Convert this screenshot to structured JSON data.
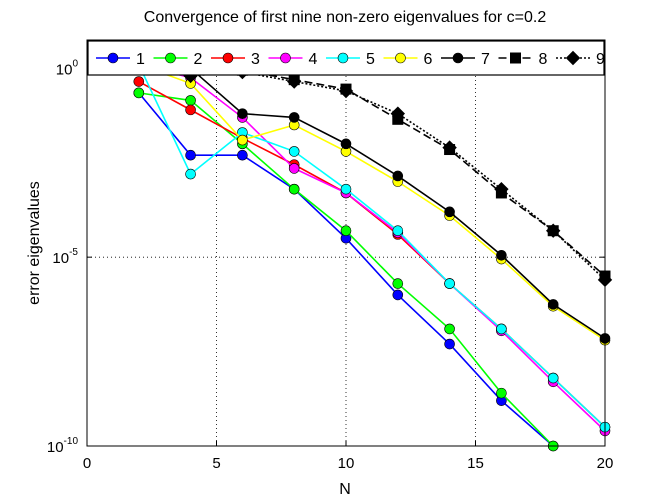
{
  "chart_data": {
    "type": "line",
    "title": "Convergence of first nine non-zero eigenvalues for c=0.2",
    "xlabel": "N",
    "ylabel": "error eigenvalues",
    "xlim": [
      0,
      20
    ],
    "ylim_log10": [
      -10,
      0.75
    ],
    "yscale": "log",
    "grid": "dotted",
    "x_ticks": [
      0,
      5,
      10,
      15,
      20
    ],
    "x_tick_labels": [
      "0",
      "5",
      "10",
      "15",
      "20"
    ],
    "y_ticks": [
      {
        "exp": 0,
        "base": "10",
        "sup": "0"
      },
      {
        "exp": -5,
        "base": "10",
        "sup": "-5"
      },
      {
        "exp": -10,
        "base": "10",
        "sup": "-10"
      }
    ],
    "legend_position": "top",
    "series": [
      {
        "name": "1",
        "color": "#0000ff",
        "line": "solid",
        "marker": "circle",
        "x": [
          2,
          4,
          6,
          8,
          10,
          12,
          14,
          16,
          18
        ],
        "log10_y": [
          -0.65,
          -2.3,
          -2.3,
          -3.2,
          -4.5,
          -6.0,
          -7.3,
          -8.8,
          -10.0
        ]
      },
      {
        "name": "2",
        "color": "#00ff00",
        "line": "solid",
        "marker": "circle",
        "x": [
          2,
          4,
          6,
          8,
          10,
          12,
          14,
          16,
          18
        ],
        "log10_y": [
          -0.65,
          -0.85,
          -2.0,
          -3.2,
          -4.3,
          -5.7,
          -6.9,
          -8.6,
          -10.0
        ]
      },
      {
        "name": "3",
        "color": "#ff0000",
        "line": "solid",
        "marker": "circle",
        "x": [
          2,
          4,
          6,
          8,
          10,
          12,
          14,
          16,
          18,
          20
        ],
        "log10_y": [
          -0.35,
          -1.1,
          -1.85,
          -2.55,
          -3.3,
          -4.4,
          -5.7,
          -6.9,
          -8.2,
          -9.5
        ]
      },
      {
        "name": "4",
        "color": "#ff00ff",
        "line": "solid",
        "marker": "circle",
        "x": [
          2,
          4,
          6,
          8,
          10,
          12,
          14,
          16,
          18,
          20
        ],
        "log10_y": [
          0.1,
          -0.25,
          -1.3,
          -2.65,
          -3.3,
          -4.35,
          -5.7,
          -6.95,
          -8.3,
          -9.6
        ]
      },
      {
        "name": "5",
        "color": "#00ffff",
        "line": "solid",
        "marker": "circle",
        "x": [
          2,
          4,
          6,
          8,
          10,
          12,
          14,
          16,
          18,
          20
        ],
        "log10_y": [
          0.1,
          -2.8,
          -1.7,
          -2.2,
          -3.2,
          -4.3,
          -5.7,
          -6.9,
          -8.2,
          -9.5
        ]
      },
      {
        "name": "6",
        "color": "#ffff00",
        "line": "solid",
        "marker": "circle",
        "x": [
          2,
          4,
          6,
          8,
          10,
          12,
          14,
          16,
          18,
          20
        ],
        "log10_y": [
          0.1,
          -0.4,
          -1.9,
          -1.5,
          -2.2,
          -3.0,
          -3.9,
          -5.05,
          -6.3,
          -7.2
        ]
      },
      {
        "name": "7",
        "color": "#000000",
        "line": "solid",
        "marker": "circle",
        "x": [
          2,
          4,
          6,
          8,
          10,
          12,
          14,
          16,
          18,
          20
        ],
        "log10_y": [
          0.2,
          0.0,
          -1.2,
          -1.3,
          -2.0,
          -2.85,
          -3.8,
          -4.95,
          -6.25,
          -7.15
        ]
      },
      {
        "name": "8",
        "color": "#000000",
        "line": "dashed",
        "marker": "square",
        "x": [
          2,
          4,
          6,
          8,
          10,
          12,
          14,
          16,
          18,
          20
        ],
        "log10_y": [
          0.25,
          -0.05,
          -0.05,
          -0.3,
          -0.55,
          -1.35,
          -2.15,
          -3.3,
          -4.3,
          -5.5
        ]
      },
      {
        "name": "9",
        "color": "#000000",
        "line": "dotted",
        "marker": "diamond",
        "x": [
          4,
          6,
          8,
          10,
          12,
          14,
          16,
          18,
          20
        ],
        "log10_y": [
          -0.2,
          -0.1,
          -0.35,
          -0.6,
          -1.2,
          -2.1,
          -3.2,
          -4.3,
          -5.6
        ]
      }
    ]
  }
}
